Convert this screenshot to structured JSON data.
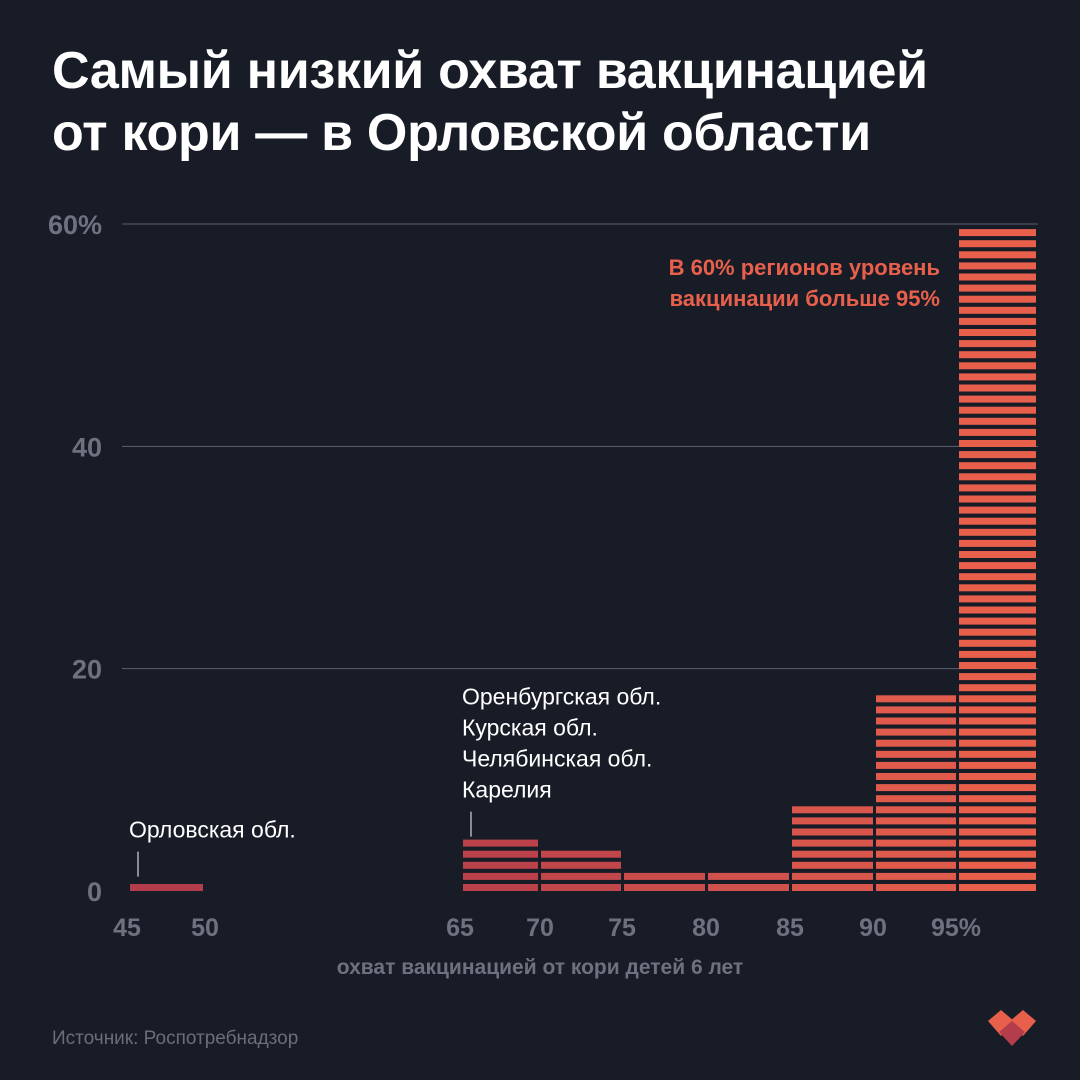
{
  "title_lines": [
    "Самый низкий охват вакцинацией",
    "от кори — в Орловской области"
  ],
  "source": "Источник: Роспотребнадзор",
  "chart_data": {
    "type": "bar",
    "title": "Самый низкий охват вакцинацией от кори — в Орловской области",
    "xlabel": "охват вакцинацией от кори детей 6 лет",
    "ylabel": "",
    "ylim": [
      0,
      60
    ],
    "grid": true,
    "x_ticks": [
      "45",
      "50",
      "65",
      "70",
      "75",
      "80",
      "85",
      "90",
      "95%"
    ],
    "y_ticks": [
      {
        "value": 0,
        "label": "0"
      },
      {
        "value": 20,
        "label": "20"
      },
      {
        "value": 40,
        "label": "40"
      },
      {
        "value": 60,
        "label": "60%"
      }
    ],
    "bins": [
      {
        "from": 45,
        "to": 50,
        "value": 1.2
      },
      {
        "from": 65,
        "to": 70,
        "value": 4.8
      },
      {
        "from": 70,
        "to": 75,
        "value": 3.6
      },
      {
        "from": 75,
        "to": 80,
        "value": 2.4
      },
      {
        "from": 80,
        "to": 85,
        "value": 2.4
      },
      {
        "from": 85,
        "to": 90,
        "value": 8.3
      },
      {
        "from": 90,
        "to": 95,
        "value": 17.9
      },
      {
        "from": 95,
        "to": 100,
        "value": 60
      }
    ],
    "annotations": [
      {
        "bin": 0,
        "lines": [
          "Орловская обл."
        ]
      },
      {
        "bin": 1,
        "lines": [
          "Оренбургская обл.",
          "Курская обл.",
          "Челябинская обл.",
          "Карелия"
        ]
      },
      {
        "bin": 7,
        "lines": [
          "В 60% регионов уровень",
          "вакцинации больше 95%"
        ],
        "highlight": true
      }
    ],
    "colors": {
      "low": "#b33d4b",
      "high": "#e8604c",
      "text": "#ffffff",
      "highlight_text": "#e8604c",
      "axis_text": "#6e7280",
      "grid": "#5c6070",
      "background": "#181c27"
    }
  },
  "logo": {
    "icon": "diamond-hearts-logo-icon",
    "colors": [
      "#e8604c",
      "#b33d4b"
    ]
  }
}
